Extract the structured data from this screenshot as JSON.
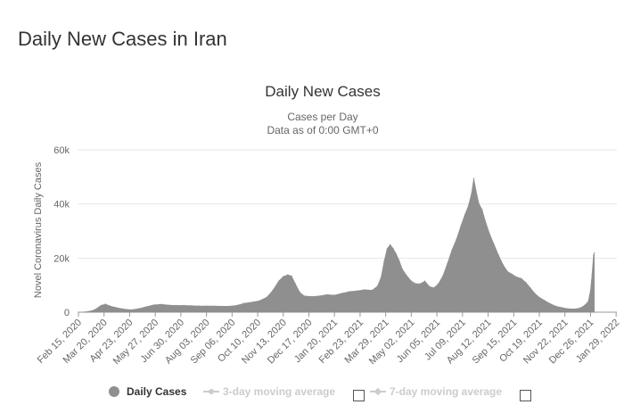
{
  "page": {
    "title": "Daily New Cases in Iran"
  },
  "chart_data": {
    "type": "area",
    "title": "Daily New Cases",
    "subtitle_lines": [
      "Cases per Day",
      "Data as of 0:00 GMT+0"
    ],
    "ylabel": "Novel Coronavirus Daily Cases",
    "xlabel": "",
    "ylim": [
      0,
      60000
    ],
    "y_ticks": [
      0,
      20000,
      40000,
      60000
    ],
    "y_tick_labels": [
      "0",
      "20k",
      "40k",
      "60k"
    ],
    "x_range_days": [
      0,
      715
    ],
    "x_ticks": [
      {
        "label": "Feb 15, 2020",
        "day": 0
      },
      {
        "label": "Mar 20, 2020",
        "day": 34
      },
      {
        "label": "Apr 23, 2020",
        "day": 68
      },
      {
        "label": "May 27, 2020",
        "day": 102
      },
      {
        "label": "Jun 30, 2020",
        "day": 136
      },
      {
        "label": "Aug 03, 2020",
        "day": 170
      },
      {
        "label": "Sep 06, 2020",
        "day": 204
      },
      {
        "label": "Oct 10, 2020",
        "day": 238
      },
      {
        "label": "Nov 13, 2020",
        "day": 272
      },
      {
        "label": "Dec 17, 2020",
        "day": 306
      },
      {
        "label": "Jan 20, 2021",
        "day": 340
      },
      {
        "label": "Feb 23, 2021",
        "day": 374
      },
      {
        "label": "Mar 29, 2021",
        "day": 408
      },
      {
        "label": "May 02, 2021",
        "day": 442
      },
      {
        "label": "Jun 05, 2021",
        "day": 476
      },
      {
        "label": "Jul 09, 2021",
        "day": 510
      },
      {
        "label": "Aug 12, 2021",
        "day": 544
      },
      {
        "label": "Sep 15, 2021",
        "day": 578
      },
      {
        "label": "Oct 19, 2021",
        "day": 612
      },
      {
        "label": "Nov 22, 2021",
        "day": 646
      },
      {
        "label": "Dec 26, 2021",
        "day": 680
      },
      {
        "label": "Jan 29, 2022",
        "day": 714
      }
    ],
    "series": [
      {
        "name": "Daily Cases",
        "color": "#8f8f8f",
        "points": [
          [
            0,
            0
          ],
          [
            7,
            50
          ],
          [
            14,
            300
          ],
          [
            22,
            1000
          ],
          [
            30,
            2500
          ],
          [
            36,
            3000
          ],
          [
            42,
            2300
          ],
          [
            50,
            1700
          ],
          [
            60,
            1200
          ],
          [
            70,
            900
          ],
          [
            80,
            1300
          ],
          [
            90,
            2000
          ],
          [
            100,
            2700
          ],
          [
            110,
            2900
          ],
          [
            120,
            2600
          ],
          [
            130,
            2500
          ],
          [
            140,
            2500
          ],
          [
            150,
            2400
          ],
          [
            160,
            2300
          ],
          [
            170,
            2300
          ],
          [
            180,
            2300
          ],
          [
            190,
            2200
          ],
          [
            200,
            2200
          ],
          [
            210,
            2500
          ],
          [
            220,
            3300
          ],
          [
            230,
            3700
          ],
          [
            240,
            4200
          ],
          [
            250,
            5500
          ],
          [
            258,
            8000
          ],
          [
            266,
            11500
          ],
          [
            272,
            13200
          ],
          [
            278,
            13800
          ],
          [
            283,
            13400
          ],
          [
            288,
            10500
          ],
          [
            294,
            7300
          ],
          [
            300,
            6000
          ],
          [
            310,
            5800
          ],
          [
            320,
            6000
          ],
          [
            330,
            6500
          ],
          [
            340,
            6300
          ],
          [
            350,
            7000
          ],
          [
            360,
            7600
          ],
          [
            370,
            7900
          ],
          [
            380,
            8300
          ],
          [
            390,
            8100
          ],
          [
            397,
            9600
          ],
          [
            402,
            13000
          ],
          [
            406,
            19000
          ],
          [
            410,
            23500
          ],
          [
            414,
            25000
          ],
          [
            418,
            23500
          ],
          [
            422,
            21500
          ],
          [
            426,
            19000
          ],
          [
            430,
            16000
          ],
          [
            436,
            13500
          ],
          [
            442,
            11500
          ],
          [
            448,
            10500
          ],
          [
            454,
            10500
          ],
          [
            460,
            11500
          ],
          [
            466,
            9500
          ],
          [
            472,
            9000
          ],
          [
            478,
            10500
          ],
          [
            484,
            13500
          ],
          [
            490,
            18000
          ],
          [
            496,
            23000
          ],
          [
            502,
            27000
          ],
          [
            508,
            32000
          ],
          [
            513,
            36000
          ],
          [
            518,
            39500
          ],
          [
            522,
            44000
          ],
          [
            525,
            49500
          ],
          [
            528,
            45000
          ],
          [
            532,
            40000
          ],
          [
            536,
            38000
          ],
          [
            540,
            34000
          ],
          [
            546,
            29000
          ],
          [
            552,
            25000
          ],
          [
            558,
            21000
          ],
          [
            564,
            17500
          ],
          [
            570,
            15000
          ],
          [
            576,
            14000
          ],
          [
            582,
            13000
          ],
          [
            588,
            12500
          ],
          [
            594,
            11000
          ],
          [
            600,
            9000
          ],
          [
            606,
            7000
          ],
          [
            612,
            5500
          ],
          [
            618,
            4500
          ],
          [
            626,
            3200
          ],
          [
            634,
            2200
          ],
          [
            642,
            1700
          ],
          [
            650,
            1300
          ],
          [
            658,
            1200
          ],
          [
            666,
            1500
          ],
          [
            672,
            2500
          ],
          [
            677,
            4000
          ],
          [
            680,
            8000
          ],
          [
            682,
            14000
          ],
          [
            684,
            21000
          ],
          [
            685,
            22000
          ]
        ]
      }
    ],
    "legend": [
      {
        "label": "Daily Cases",
        "visible": true,
        "color": "#8f8f8f"
      },
      {
        "label": "3-day moving average",
        "visible": false,
        "color": "#cccccc"
      },
      {
        "label": "7-day moving average",
        "visible": false,
        "color": "#cccccc"
      }
    ]
  }
}
